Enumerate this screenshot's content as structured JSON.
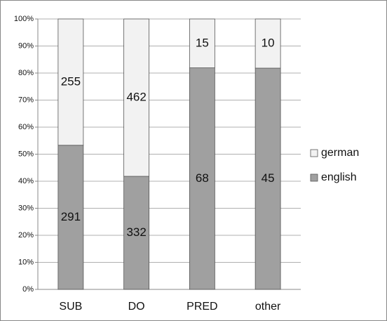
{
  "chart_data": {
    "type": "bar",
    "stacking": "percent",
    "categories": [
      "SUB",
      "DO",
      "PRED",
      "other"
    ],
    "series": [
      {
        "name": "english",
        "color": "#a0a0a0",
        "values": [
          291,
          332,
          68,
          45
        ]
      },
      {
        "name": "german",
        "color": "#f2f2f2",
        "values": [
          255,
          462,
          15,
          10
        ]
      }
    ],
    "ylim": [
      0,
      100
    ],
    "yticks": [
      {
        "value": 0,
        "label": "0%"
      },
      {
        "value": 10,
        "label": "10%"
      },
      {
        "value": 20,
        "label": "20%"
      },
      {
        "value": 30,
        "label": "30%"
      },
      {
        "value": 40,
        "label": "40%"
      },
      {
        "value": 50,
        "label": "50%"
      },
      {
        "value": 60,
        "label": "60%"
      },
      {
        "value": 70,
        "label": "70%"
      },
      {
        "value": 80,
        "label": "80%"
      },
      {
        "value": 90,
        "label": "90%"
      },
      {
        "value": 100,
        "label": "100%"
      }
    ],
    "grid": true,
    "legend": "right"
  }
}
